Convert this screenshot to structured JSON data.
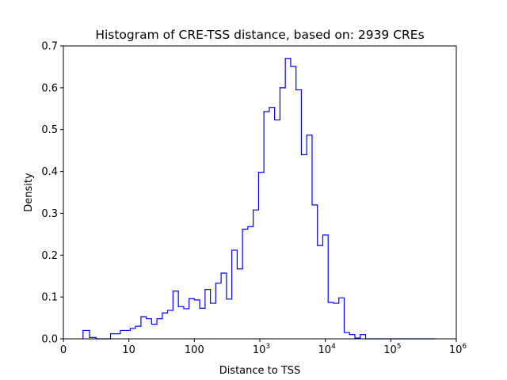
{
  "chart_data": {
    "type": "histogram",
    "title": "Histogram of CRE-TSS distance, based on: 2939 CREs",
    "xlabel": "Distance to TSS",
    "ylabel": "Density",
    "x_scale": "symlog",
    "x_linthresh": 10,
    "xlim": [
      0,
      1000000
    ],
    "ylim": [
      0,
      0.7
    ],
    "grid": false,
    "legend": "none",
    "x_ticks": [
      {
        "value": 0,
        "base": "0",
        "exp": ""
      },
      {
        "value": 10,
        "base": "10",
        "exp": ""
      },
      {
        "value": 100,
        "base": "100",
        "exp": ""
      },
      {
        "value": 1000,
        "base": "10",
        "exp": "3"
      },
      {
        "value": 10000,
        "base": "10",
        "exp": "4"
      },
      {
        "value": 100000,
        "base": "10",
        "exp": "5"
      },
      {
        "value": 1000000,
        "base": "10",
        "exp": "6"
      }
    ],
    "y_ticks": [
      "0.0",
      "0.1",
      "0.2",
      "0.3",
      "0.4",
      "0.5",
      "0.6",
      "0.7"
    ],
    "y_tick_values": [
      0,
      0.1,
      0.2,
      0.3,
      0.4,
      0.5,
      0.6,
      0.7
    ],
    "series": [
      {
        "color": "#0000ff",
        "bin_edges": [
          3.0,
          4.0,
          5.0,
          6.0,
          7.2,
          8.7,
          10.5,
          12.6,
          15.3,
          18.5,
          22.2,
          26.8,
          32.4,
          39.0,
          47.2,
          57.0,
          68.8,
          83.0,
          100.0,
          120.7,
          145.7,
          175.9,
          212.3,
          256.2,
          309.3,
          373.3,
          450.6,
          543.9,
          656.5,
          792.4,
          956.5,
          1154.5,
          1393.5,
          1682.0,
          2030.2,
          2450.5,
          2957.9,
          3570.3,
          4309.5,
          5201.7,
          6278.6,
          7578.5,
          9147.4,
          11041.2,
          13327.1,
          16086.2,
          19416.5,
          23436.3,
          28288.3,
          34144.9,
          41213.8,
          49746.3,
          60045.1,
          72476.3,
          87481.1,
          105592.3,
          127452.9,
          153839.7,
          185689.0,
          224131.6,
          270533.3,
          326541.3,
          394145.0,
          475744.9
        ],
        "density": [
          0.02,
          0.003,
          0.0,
          0.0,
          0.012,
          0.02,
          0.025,
          0.03,
          0.053,
          0.048,
          0.035,
          0.048,
          0.062,
          0.068,
          0.114,
          0.077,
          0.072,
          0.096,
          0.093,
          0.073,
          0.118,
          0.085,
          0.133,
          0.157,
          0.095,
          0.212,
          0.167,
          0.262,
          0.268,
          0.308,
          0.398,
          0.543,
          0.553,
          0.523,
          0.6,
          0.67,
          0.651,
          0.595,
          0.44,
          0.487,
          0.32,
          0.223,
          0.248,
          0.087,
          0.085,
          0.098,
          0.015,
          0.01,
          0.002,
          0.01,
          0.0,
          0.0,
          0.0,
          0.0,
          0.0,
          0.0,
          0.0,
          0.0,
          0.0,
          0.0,
          0.0,
          0.0,
          0.0
        ]
      }
    ]
  }
}
